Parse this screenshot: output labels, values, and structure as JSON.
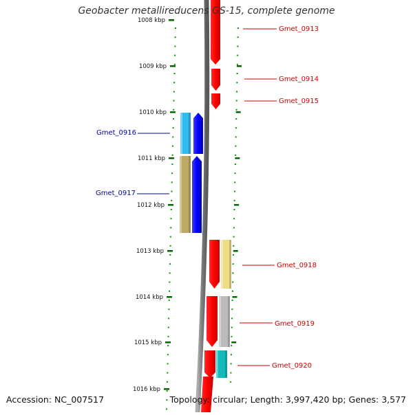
{
  "title": "Geobacter metallireducens GS-15, complete genome",
  "footer": {
    "accession": "Accession: NC_007517",
    "summary": "Topology: circular; Length: 3,997,420 bp; Genes: 3,577"
  },
  "colors": {
    "forward_gene": "#ff0000",
    "reverse_gene": "#0000ff",
    "forward_label": "#cc0000",
    "reverse_label": "#000099",
    "tick": "#006600",
    "dots": "#009900",
    "backbone": "#8a8a8a"
  },
  "ruler": {
    "unit": "kbp",
    "ticks": [
      "1008 kbp",
      "1009 kbp",
      "1010 kbp",
      "1011 kbp",
      "1012 kbp",
      "1013 kbp",
      "1014 kbp",
      "1015 kbp",
      "1016 kbp"
    ]
  },
  "genes": [
    {
      "name": "Gmet_0913",
      "strand": "forward"
    },
    {
      "name": "Gmet_0914",
      "strand": "forward"
    },
    {
      "name": "Gmet_0915",
      "strand": "forward"
    },
    {
      "name": "Gmet_0916",
      "strand": "reverse"
    },
    {
      "name": "Gmet_0917",
      "strand": "reverse"
    },
    {
      "name": "Gmet_0918",
      "strand": "forward"
    },
    {
      "name": "Gmet_0919",
      "strand": "forward"
    },
    {
      "name": "Gmet_0920",
      "strand": "forward"
    }
  ],
  "features": {
    "cog_blocks": [
      {
        "gene": "Gmet_0916",
        "color": "#33bbee"
      },
      {
        "gene": "Gmet_0917",
        "color": "#bbaa66"
      },
      {
        "gene": "Gmet_0918",
        "color": "#eedd88"
      },
      {
        "gene": "Gmet_0919",
        "color": "#bbbbbb"
      },
      {
        "gene": "Gmet_0920",
        "color": "#11bbbb"
      }
    ]
  }
}
